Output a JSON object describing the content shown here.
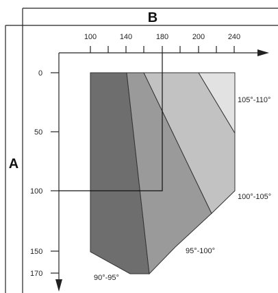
{
  "labels": {
    "header_b": "B",
    "side_a": "A"
  },
  "x_axis": {
    "ticks": [
      "100",
      "140",
      "180",
      "200",
      "240"
    ]
  },
  "y_axis": {
    "ticks": [
      "0",
      "50",
      "100",
      "150",
      "170"
    ]
  },
  "zones": [
    {
      "label": "90°-95°",
      "color": "#6e6e6e"
    },
    {
      "label": "95°-100°",
      "color": "#9a9a9a"
    },
    {
      "label": "100°-105°",
      "color": "#c2c2c2"
    },
    {
      "label": "105°-110°",
      "color": "#e2e2e2"
    }
  ],
  "example_reading": {
    "b": 180,
    "a": 100
  }
}
